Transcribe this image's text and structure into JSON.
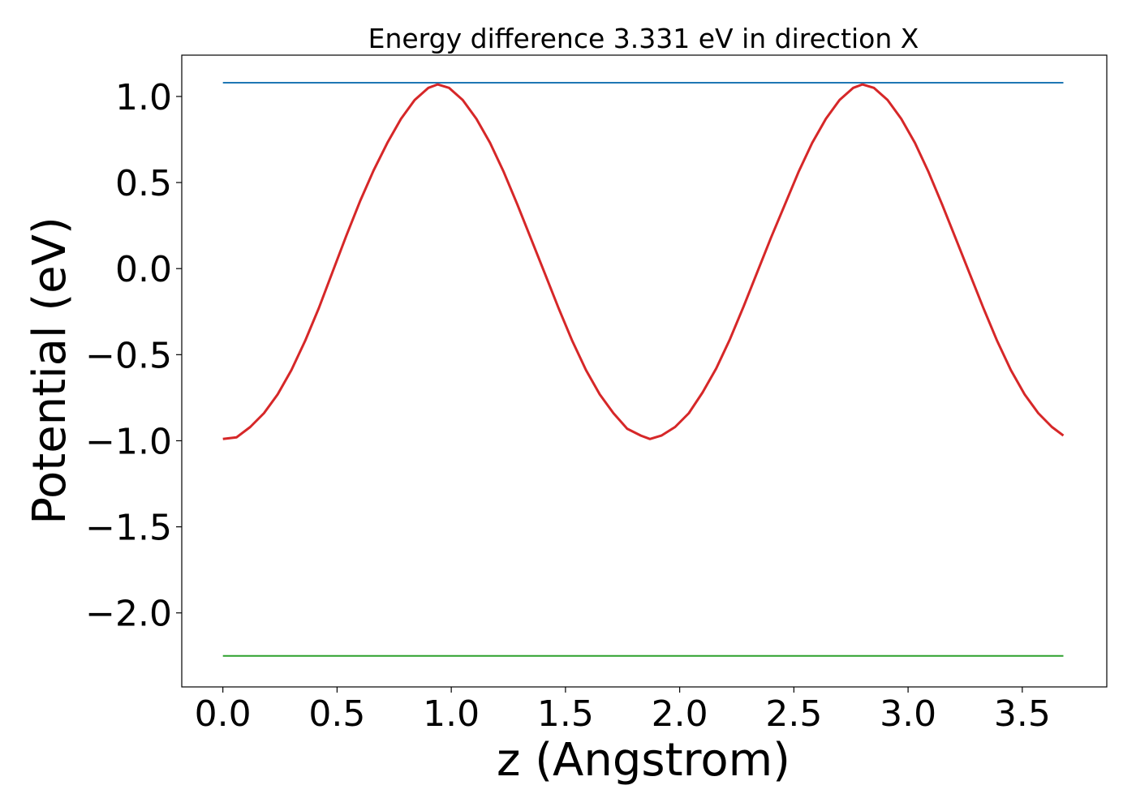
{
  "chart_data": {
    "type": "line",
    "title": "Energy difference 3.331 eV in direction X",
    "xlabel": "z (Angstrom)",
    "ylabel": "Potential (eV)",
    "xlim": [
      -0.18,
      3.87
    ],
    "ylim": [
      -2.43,
      1.24
    ],
    "xticks": [
      0.0,
      0.5,
      1.0,
      1.5,
      2.0,
      2.5,
      3.0,
      3.5
    ],
    "xtick_labels": [
      "0.0",
      "0.5",
      "1.0",
      "1.5",
      "2.0",
      "2.5",
      "3.0",
      "3.5"
    ],
    "yticks": [
      1.0,
      0.5,
      0.0,
      -0.5,
      -1.0,
      -1.5,
      -2.0
    ],
    "ytick_labels": [
      "1.0",
      "0.5",
      "0.0",
      "−0.5",
      "−1.0",
      "−1.5",
      "−2.0"
    ],
    "grid": false,
    "legend": "none",
    "series": [
      {
        "color": "#1f77b4",
        "x": [
          0.0,
          3.68
        ],
        "y": [
          1.08,
          1.08
        ]
      },
      {
        "color": "#2ca02c",
        "x": [
          0.0,
          3.68
        ],
        "y": [
          -2.25,
          -2.25
        ]
      },
      {
        "color": "#d62728",
        "x": [
          0.0,
          0.06,
          0.12,
          0.18,
          0.24,
          0.3,
          0.36,
          0.42,
          0.48,
          0.54,
          0.6,
          0.66,
          0.72,
          0.78,
          0.84,
          0.9,
          0.94,
          0.99,
          1.05,
          1.11,
          1.17,
          1.23,
          1.29,
          1.35,
          1.41,
          1.47,
          1.53,
          1.59,
          1.65,
          1.71,
          1.77,
          1.83,
          1.87,
          1.92,
          1.98,
          2.04,
          2.1,
          2.16,
          2.22,
          2.28,
          2.34,
          2.4,
          2.46,
          2.52,
          2.58,
          2.64,
          2.7,
          2.76,
          2.8,
          2.85,
          2.91,
          2.97,
          3.03,
          3.09,
          3.15,
          3.21,
          3.27,
          3.33,
          3.39,
          3.45,
          3.51,
          3.57,
          3.63,
          3.68
        ],
        "y": [
          -0.99,
          -0.98,
          -0.92,
          -0.84,
          -0.73,
          -0.59,
          -0.42,
          -0.23,
          -0.02,
          0.19,
          0.39,
          0.57,
          0.73,
          0.87,
          0.98,
          1.05,
          1.07,
          1.05,
          0.98,
          0.87,
          0.73,
          0.56,
          0.37,
          0.17,
          -0.03,
          -0.23,
          -0.42,
          -0.59,
          -0.73,
          -0.84,
          -0.93,
          -0.97,
          -0.99,
          -0.97,
          -0.92,
          -0.84,
          -0.72,
          -0.58,
          -0.41,
          -0.22,
          -0.02,
          0.18,
          0.37,
          0.56,
          0.73,
          0.87,
          0.98,
          1.05,
          1.07,
          1.05,
          0.98,
          0.87,
          0.73,
          0.56,
          0.37,
          0.17,
          -0.03,
          -0.23,
          -0.42,
          -0.59,
          -0.73,
          -0.84,
          -0.92,
          -0.97
        ]
      }
    ]
  }
}
